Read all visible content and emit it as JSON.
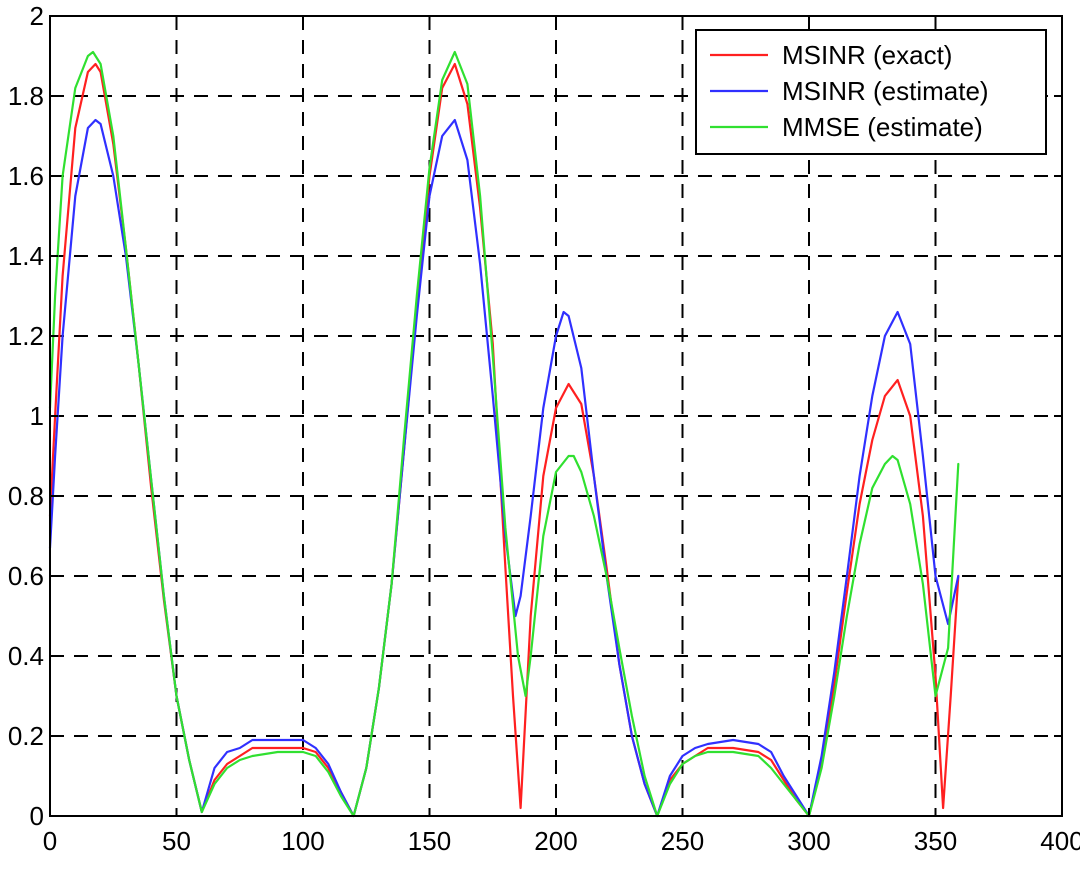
{
  "chart_data": {
    "type": "line",
    "title": "",
    "xlabel": "",
    "ylabel": "",
    "xlim": [
      0,
      400
    ],
    "ylim": [
      0,
      2
    ],
    "xticks": [
      0,
      50,
      100,
      150,
      200,
      250,
      300,
      350,
      400
    ],
    "xtick_labels": [
      "0",
      "50",
      "100",
      "150",
      "200",
      "250",
      "300",
      "350",
      "400"
    ],
    "yticks": [
      0,
      0.2,
      0.4,
      0.6,
      0.8,
      1,
      1.2,
      1.4,
      1.6,
      1.8,
      2
    ],
    "ytick_labels": [
      "0",
      "0.2",
      "0.4",
      "0.6",
      "0.8",
      "1",
      "1.2",
      "1.4",
      "1.6",
      "1.8",
      "2"
    ],
    "grid": true,
    "grid_style": "dashed",
    "legend_position": "top-right",
    "series": [
      {
        "name": "MSINR (exact)",
        "color": "#ff2020",
        "x": [
          0,
          2,
          5,
          10,
          15,
          18,
          20,
          25,
          30,
          35,
          40,
          45,
          50,
          55,
          60,
          65,
          70,
          75,
          80,
          90,
          100,
          105,
          110,
          115,
          120,
          125,
          130,
          135,
          140,
          145,
          150,
          155,
          160,
          165,
          170,
          175,
          180,
          183,
          186,
          190,
          195,
          200,
          205,
          210,
          215,
          220,
          225,
          230,
          235,
          240,
          245,
          250,
          255,
          260,
          270,
          280,
          285,
          290,
          295,
          300,
          305,
          310,
          315,
          320,
          325,
          330,
          335,
          340,
          345,
          350,
          353,
          356,
          359
        ],
        "y": [
          0.75,
          1.0,
          1.35,
          1.72,
          1.86,
          1.88,
          1.86,
          1.68,
          1.42,
          1.13,
          0.82,
          0.54,
          0.3,
          0.14,
          0.01,
          0.09,
          0.13,
          0.15,
          0.17,
          0.17,
          0.17,
          0.16,
          0.12,
          0.06,
          0.0,
          0.12,
          0.32,
          0.58,
          0.92,
          1.27,
          1.6,
          1.82,
          1.88,
          1.78,
          1.52,
          1.18,
          0.62,
          0.3,
          0.02,
          0.5,
          0.85,
          1.02,
          1.08,
          1.03,
          0.85,
          0.62,
          0.38,
          0.2,
          0.08,
          0.0,
          0.09,
          0.13,
          0.15,
          0.17,
          0.17,
          0.16,
          0.14,
          0.09,
          0.04,
          0.0,
          0.14,
          0.33,
          0.56,
          0.78,
          0.94,
          1.05,
          1.09,
          1.0,
          0.75,
          0.35,
          0.02,
          0.3,
          0.6
        ]
      },
      {
        "name": "MSINR (estimate)",
        "color": "#3030ff",
        "x": [
          0,
          2,
          5,
          10,
          15,
          18,
          20,
          25,
          30,
          35,
          40,
          45,
          50,
          55,
          60,
          65,
          70,
          75,
          80,
          90,
          100,
          105,
          110,
          115,
          120,
          125,
          130,
          135,
          140,
          145,
          150,
          155,
          160,
          165,
          170,
          175,
          180,
          184,
          186,
          190,
          195,
          200,
          203,
          205,
          210,
          215,
          220,
          225,
          230,
          235,
          240,
          245,
          250,
          255,
          260,
          270,
          280,
          285,
          290,
          295,
          300,
          305,
          310,
          315,
          320,
          325,
          330,
          335,
          340,
          345,
          350,
          355,
          359
        ],
        "y": [
          0.67,
          0.9,
          1.2,
          1.55,
          1.72,
          1.74,
          1.73,
          1.6,
          1.4,
          1.13,
          0.84,
          0.55,
          0.3,
          0.14,
          0.01,
          0.12,
          0.16,
          0.17,
          0.19,
          0.19,
          0.19,
          0.17,
          0.13,
          0.06,
          0.0,
          0.12,
          0.32,
          0.58,
          0.92,
          1.25,
          1.55,
          1.7,
          1.74,
          1.64,
          1.38,
          1.05,
          0.7,
          0.5,
          0.55,
          0.75,
          1.02,
          1.2,
          1.26,
          1.25,
          1.12,
          0.85,
          0.6,
          0.38,
          0.2,
          0.08,
          0.0,
          0.1,
          0.15,
          0.17,
          0.18,
          0.19,
          0.18,
          0.16,
          0.1,
          0.05,
          0.0,
          0.15,
          0.36,
          0.6,
          0.85,
          1.05,
          1.2,
          1.26,
          1.18,
          0.9,
          0.6,
          0.48,
          0.6
        ]
      },
      {
        "name": "MMSE (estimate)",
        "color": "#30e030",
        "x": [
          0,
          2,
          5,
          10,
          15,
          17,
          20,
          25,
          30,
          35,
          40,
          45,
          50,
          55,
          60,
          65,
          70,
          75,
          80,
          90,
          100,
          105,
          110,
          115,
          120,
          125,
          130,
          135,
          140,
          145,
          150,
          155,
          160,
          165,
          170,
          175,
          180,
          185,
          188,
          190,
          195,
          200,
          205,
          207,
          210,
          215,
          220,
          225,
          230,
          235,
          240,
          245,
          250,
          255,
          260,
          270,
          280,
          285,
          290,
          295,
          300,
          305,
          310,
          315,
          320,
          325,
          330,
          333,
          335,
          340,
          345,
          350,
          355,
          359
        ],
        "y": [
          1.02,
          1.3,
          1.6,
          1.82,
          1.9,
          1.91,
          1.88,
          1.7,
          1.42,
          1.13,
          0.84,
          0.55,
          0.3,
          0.14,
          0.01,
          0.08,
          0.12,
          0.14,
          0.15,
          0.16,
          0.16,
          0.15,
          0.11,
          0.05,
          0.0,
          0.12,
          0.32,
          0.58,
          0.95,
          1.3,
          1.62,
          1.84,
          1.91,
          1.83,
          1.55,
          1.15,
          0.72,
          0.4,
          0.3,
          0.4,
          0.7,
          0.86,
          0.9,
          0.9,
          0.86,
          0.75,
          0.6,
          0.42,
          0.25,
          0.1,
          0.0,
          0.08,
          0.13,
          0.15,
          0.16,
          0.16,
          0.15,
          0.12,
          0.08,
          0.04,
          0.0,
          0.12,
          0.3,
          0.5,
          0.68,
          0.82,
          0.88,
          0.9,
          0.89,
          0.78,
          0.58,
          0.3,
          0.42,
          0.88
        ]
      }
    ]
  }
}
